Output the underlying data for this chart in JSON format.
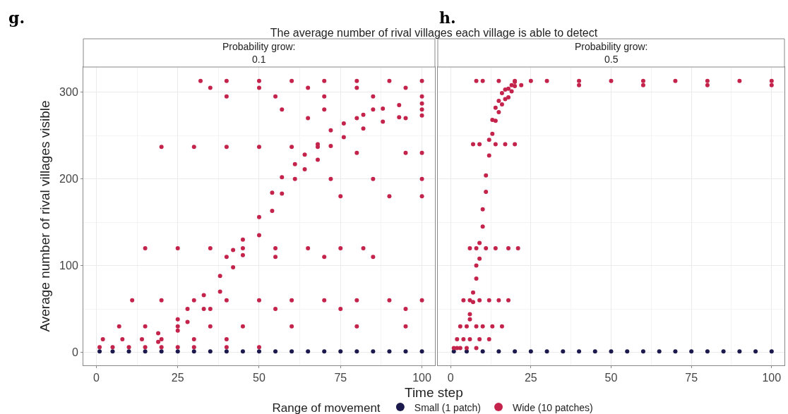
{
  "chart_data": [
    {
      "type": "scatter",
      "title": "The average number of rival villages each village is able to detect",
      "subtitle": "Probability grow:\n0.1",
      "annotations": [
        "g."
      ],
      "xlabel": "Time step",
      "ylabel": "Average number of rival villages visible",
      "legend_title": "Range of movement",
      "legend": "bottom",
      "grid": true,
      "marker": "circle",
      "xlim": [
        -4,
        104
      ],
      "ylim": [
        -15,
        329
      ],
      "xticks": [
        0,
        25,
        50,
        75,
        100
      ],
      "yticks": [
        0,
        100,
        200,
        300
      ],
      "series": [
        {
          "name": "Small (1 patch)",
          "color": "#1c1a4c",
          "x": [
            1,
            5,
            10,
            15,
            20,
            25,
            30,
            35,
            40,
            45,
            50,
            55,
            60,
            65,
            70,
            75,
            80,
            85,
            90,
            95,
            100
          ],
          "values": [
            1,
            1,
            1,
            1,
            1,
            1,
            1,
            1,
            1,
            1,
            1,
            1,
            1,
            1,
            1,
            1,
            1,
            1,
            1,
            1,
            1
          ]
        },
        {
          "name": "Wide (10 patches)",
          "color": "#c4244c",
          "x": [
            19,
            25,
            28,
            33,
            38,
            42,
            45,
            50,
            54,
            57,
            61,
            64,
            68,
            72,
            76,
            82,
            88,
            93,
            100,
            19,
            25,
            28,
            33,
            38,
            42,
            45,
            50,
            54,
            57,
            61,
            64,
            68,
            72,
            76,
            82,
            88,
            93,
            100,
            32,
            40,
            50,
            60,
            70,
            80,
            90,
            100,
            35,
            50,
            65,
            80,
            95,
            40,
            55,
            70,
            85,
            100,
            57,
            70,
            85,
            100,
            65,
            80,
            95,
            20,
            30,
            40,
            50,
            60,
            68,
            80,
            95,
            100,
            72,
            85,
            100,
            75,
            90,
            100,
            15,
            25,
            35,
            45,
            55,
            65,
            75,
            82,
            40,
            55,
            70,
            85,
            11,
            20,
            30,
            40,
            50,
            60,
            70,
            80,
            90,
            100,
            35,
            55,
            75,
            95,
            7,
            15,
            25,
            35,
            45,
            60,
            80,
            95,
            2,
            8,
            14,
            20,
            30,
            40,
            1,
            5,
            10,
            15,
            20,
            25,
            30,
            40,
            50
          ],
          "values": [
            12,
            25,
            35,
            50,
            70,
            98,
            112,
            135,
            163,
            183,
            200,
            211,
            222,
            238,
            248,
            258,
            266,
            271,
            273,
            22,
            38,
            50,
            66,
            88,
            118,
            130,
            156,
            184,
            202,
            217,
            228,
            240,
            256,
            264,
            274,
            281,
            285,
            287,
            313,
            313,
            313,
            313,
            313,
            313,
            313,
            313,
            305,
            305,
            305,
            305,
            305,
            295,
            295,
            295,
            295,
            295,
            280,
            280,
            280,
            280,
            270,
            270,
            270,
            237,
            237,
            237,
            237,
            237,
            237,
            230,
            230,
            230,
            200,
            200,
            200,
            180,
            180,
            180,
            120,
            120,
            120,
            120,
            120,
            120,
            120,
            120,
            110,
            110,
            110,
            110,
            60,
            60,
            60,
            60,
            60,
            60,
            60,
            60,
            60,
            60,
            50,
            50,
            50,
            50,
            30,
            30,
            30,
            30,
            30,
            30,
            30,
            30,
            15,
            15,
            15,
            15,
            15,
            15,
            6,
            6,
            6,
            6,
            6,
            6,
            6,
            6,
            6
          ]
        }
      ]
    },
    {
      "type": "scatter",
      "subtitle": "Probability grow:\n0.5",
      "annotations": [
        "h."
      ],
      "grid": true,
      "marker": "circle",
      "tick_labels": "x",
      "xlim": [
        -4,
        104
      ],
      "ylim": [
        -15,
        329
      ],
      "xticks": [
        0,
        25,
        50,
        75,
        100
      ],
      "yticks": [
        0,
        100,
        200,
        300
      ],
      "series": [
        {
          "color": "#1c1a4c",
          "x": [
            1,
            5,
            10,
            15,
            20,
            25,
            30,
            35,
            40,
            45,
            50,
            55,
            60,
            65,
            70,
            75,
            80,
            85,
            90,
            95,
            100
          ],
          "values": [
            1,
            1,
            1,
            1,
            1,
            1,
            1,
            1,
            1,
            1,
            1,
            1,
            1,
            1,
            1,
            1,
            1,
            1,
            1,
            1,
            1
          ]
        },
        {
          "color": "#c4244c",
          "x": [
            6,
            7,
            8,
            9,
            10,
            11,
            12,
            13,
            14,
            15,
            16,
            17,
            18,
            19,
            20,
            6,
            7,
            8,
            9,
            10,
            11,
            12,
            13,
            14,
            15,
            16,
            17,
            18,
            19,
            20,
            8,
            10,
            15,
            20,
            25,
            30,
            40,
            50,
            60,
            70,
            80,
            90,
            100,
            22,
            40,
            60,
            80,
            100,
            7,
            9,
            14,
            17,
            20,
            6,
            8,
            11,
            14,
            18,
            21,
            4,
            6,
            9,
            12,
            15,
            18,
            3,
            5,
            8,
            10,
            13,
            16,
            2,
            4,
            6,
            9,
            12,
            1,
            2,
            3,
            5,
            8
          ],
          "values": [
            38,
            58,
            85,
            108,
            145,
            185,
            227,
            252,
            267,
            277,
            286,
            292,
            294,
            301,
            307,
            44,
            69,
            100,
            126,
            165,
            204,
            245,
            268,
            282,
            290,
            299,
            303,
            304,
            308,
            312,
            313,
            313,
            313,
            313,
            313,
            313,
            313,
            313,
            313,
            313,
            313,
            313,
            313,
            308,
            308,
            308,
            308,
            308,
            240,
            240,
            240,
            240,
            240,
            120,
            120,
            120,
            120,
            120,
            120,
            60,
            60,
            60,
            60,
            60,
            60,
            30,
            30,
            30,
            30,
            30,
            30,
            15,
            15,
            15,
            15,
            15,
            5,
            5,
            5,
            5,
            5
          ]
        }
      ]
    }
  ]
}
